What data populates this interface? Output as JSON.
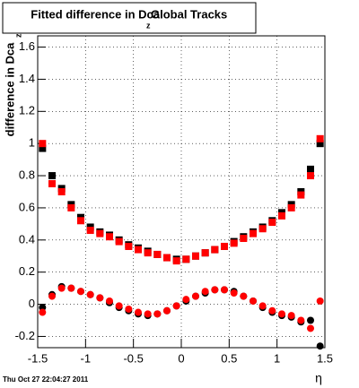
{
  "chart_data": {
    "type": "scatter",
    "title": "Fitted difference in Dca",
    "title_sub": "z",
    "title_suffix": "Global Tracks",
    "ylabel": "difference in Dca",
    "ylabel_sub": "z",
    "xlabel": "η",
    "timestamp": "Thu Oct 27 22:04:27 2011",
    "xlim": [
      -1.5,
      1.5
    ],
    "ylim": [
      -0.27,
      1.67
    ],
    "xticks": [
      -1.5,
      -1,
      -0.5,
      0,
      0.5,
      1,
      1.5
    ],
    "yticks": [
      -0.2,
      0,
      0.2,
      0.4,
      0.6,
      0.8,
      1,
      1.2,
      1.4,
      1.6
    ],
    "grid": true,
    "x": [
      -1.45,
      -1.35,
      -1.25,
      -1.15,
      -1.05,
      -0.95,
      -0.85,
      -0.75,
      -0.65,
      -0.55,
      -0.45,
      -0.35,
      -0.25,
      -0.15,
      -0.05,
      0.05,
      0.15,
      0.25,
      0.35,
      0.45,
      0.55,
      0.65,
      0.75,
      0.85,
      0.95,
      1.05,
      1.15,
      1.25,
      1.35,
      1.45
    ],
    "series": [
      {
        "color": "#000000",
        "marker": "square",
        "values": [
          0.97,
          0.8,
          0.72,
          0.62,
          0.54,
          0.48,
          0.45,
          0.43,
          0.4,
          0.37,
          0.35,
          0.33,
          0.31,
          0.29,
          0.28,
          0.28,
          0.3,
          0.32,
          0.34,
          0.36,
          0.39,
          0.42,
          0.45,
          0.48,
          0.52,
          0.57,
          0.62,
          0.7,
          0.84,
          1.0
        ]
      },
      {
        "color": "#ff0000",
        "marker": "square",
        "values": [
          1.0,
          0.75,
          0.7,
          0.6,
          0.52,
          0.46,
          0.44,
          0.42,
          0.39,
          0.36,
          0.34,
          0.32,
          0.31,
          0.29,
          0.27,
          0.28,
          0.3,
          0.32,
          0.34,
          0.36,
          0.38,
          0.41,
          0.44,
          0.47,
          0.51,
          0.55,
          0.6,
          0.68,
          0.8,
          1.03
        ]
      },
      {
        "color": "#000000",
        "marker": "circle",
        "values": [
          -0.02,
          0.06,
          0.11,
          0.1,
          0.08,
          0.06,
          0.04,
          0.01,
          -0.02,
          -0.04,
          -0.06,
          -0.07,
          -0.06,
          -0.04,
          -0.01,
          0.02,
          0.05,
          0.07,
          0.09,
          0.09,
          0.08,
          0.05,
          0.02,
          -0.02,
          -0.05,
          -0.07,
          -0.08,
          -0.11,
          -0.1,
          -0.26
        ]
      },
      {
        "color": "#ff0000",
        "marker": "circle",
        "values": [
          -0.05,
          0.05,
          0.1,
          0.1,
          0.08,
          0.06,
          0.04,
          0.02,
          -0.01,
          -0.03,
          -0.05,
          -0.06,
          -0.06,
          -0.04,
          -0.01,
          0.03,
          0.05,
          0.08,
          0.09,
          0.09,
          0.07,
          0.05,
          0.02,
          -0.01,
          -0.04,
          -0.06,
          -0.07,
          -0.1,
          -0.15,
          0.02
        ]
      }
    ]
  }
}
